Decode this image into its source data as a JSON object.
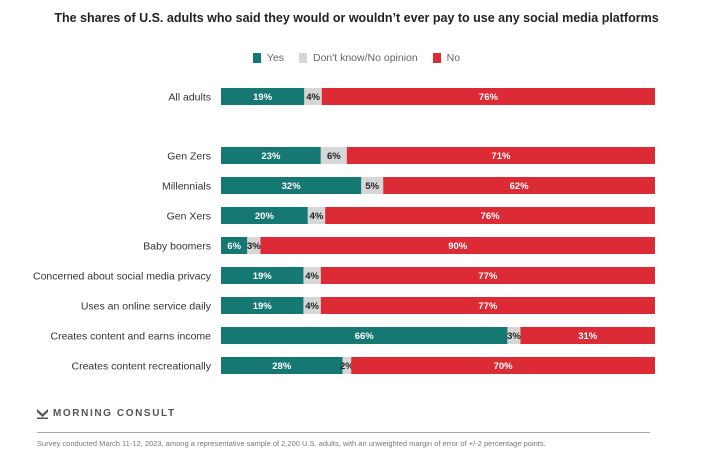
{
  "chart_data": {
    "type": "bar",
    "orientation": "horizontal",
    "stacked": true,
    "title": "The shares of U.S. adults who said they would or wouldn’t ever pay to use any social media platforms",
    "xlabel": "",
    "ylabel": "",
    "xlim": [
      0,
      100
    ],
    "grid": false,
    "legend_position": "top-center",
    "categories": [
      "All adults",
      "Gen Zers",
      "Millennials",
      "Gen Xers",
      "Baby boomers",
      "Concerned about social media privacy",
      "Uses an online service daily",
      "Creates content and earns income",
      "Creates content recreationally"
    ],
    "series": [
      {
        "name": "Yes",
        "color": "#167873",
        "values": [
          19,
          23,
          32,
          20,
          6,
          19,
          19,
          66,
          28
        ]
      },
      {
        "name": "Don't know/No opinion",
        "color": "#d6d6d6",
        "values": [
          4,
          6,
          5,
          4,
          3,
          4,
          4,
          3,
          2
        ]
      },
      {
        "name": "No",
        "color": "#dc2b35",
        "values": [
          76,
          71,
          62,
          76,
          90,
          77,
          77,
          31,
          70
        ]
      }
    ]
  },
  "branding": {
    "logo_text": "MORNING CONSULT",
    "logo_icon": "morning-consult-m-icon"
  },
  "footnote": "Survey conducted March 11-12, 2023, among a representative sample of 2,200 U.S. adults, with an unweighted margin of error of +/-2 percentage points."
}
